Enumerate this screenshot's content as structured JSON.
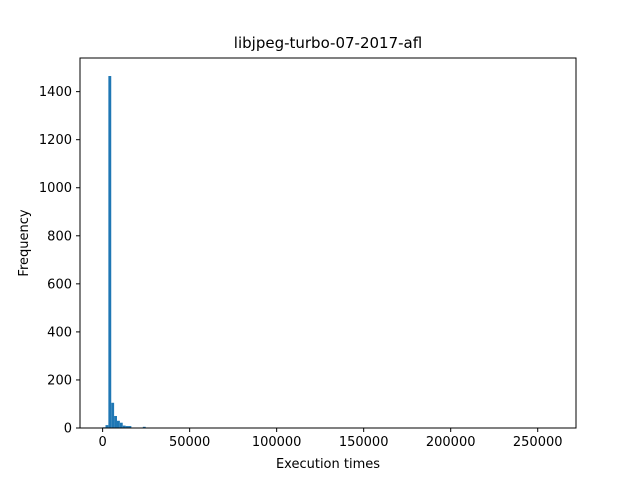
{
  "chart_data": {
    "type": "bar",
    "title": "libjpeg-turbo-07-2017-afl",
    "xlabel": "Execution times",
    "ylabel": "Frequency",
    "xlim": [
      -13000,
      272000
    ],
    "ylim": [
      0,
      1540
    ],
    "xticks": [
      0,
      50000,
      100000,
      150000,
      200000,
      250000
    ],
    "xtick_labels": [
      "0",
      "50000",
      "100000",
      "150000",
      "200000",
      "250000"
    ],
    "yticks": [
      0,
      200,
      400,
      600,
      800,
      1000,
      1200,
      1400
    ],
    "ytick_labels": [
      "0",
      "200",
      "400",
      "600",
      "800",
      "1000",
      "1200",
      "1400"
    ],
    "bar_color": "#1f77b4",
    "bins": [
      {
        "x0": 0,
        "x1": 1650,
        "value": 3
      },
      {
        "x0": 1650,
        "x1": 3300,
        "value": 12
      },
      {
        "x0": 3300,
        "x1": 4950,
        "value": 1465
      },
      {
        "x0": 4950,
        "x1": 6600,
        "value": 105
      },
      {
        "x0": 6600,
        "x1": 8250,
        "value": 50
      },
      {
        "x0": 8250,
        "x1": 9900,
        "value": 30
      },
      {
        "x0": 9900,
        "x1": 11550,
        "value": 22
      },
      {
        "x0": 11550,
        "x1": 13200,
        "value": 10
      },
      {
        "x0": 13200,
        "x1": 14850,
        "value": 8
      },
      {
        "x0": 14850,
        "x1": 16500,
        "value": 8
      },
      {
        "x0": 16500,
        "x1": 18150,
        "value": 2
      },
      {
        "x0": 18150,
        "x1": 19800,
        "value": 1
      },
      {
        "x0": 19800,
        "x1": 21450,
        "value": 1
      },
      {
        "x0": 23100,
        "x1": 24750,
        "value": 5
      },
      {
        "x0": 24750,
        "x1": 26400,
        "value": 2
      },
      {
        "x0": 28050,
        "x1": 29700,
        "value": 1
      }
    ]
  }
}
